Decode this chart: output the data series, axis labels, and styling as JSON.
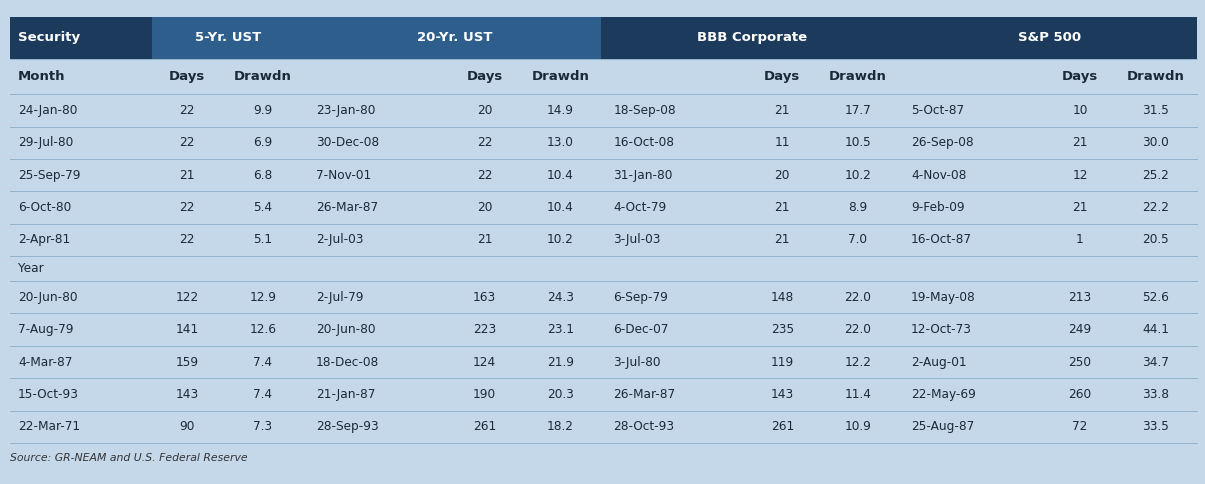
{
  "source_text": "Source: GR-NEAM and U.S. Federal Reserve",
  "col0_header1": "Security",
  "col0_header2": "Month",
  "group_headers": [
    "5-Yr. UST",
    "20-Yr. UST",
    "BBB Corporate",
    "S&P 500"
  ],
  "subheaders": [
    "Days",
    "Drawdn"
  ],
  "month_rows": [
    [
      "24-Jan-80",
      "22",
      "9.9",
      "23-Jan-80",
      "20",
      "14.9",
      "18-Sep-08",
      "21",
      "17.7",
      "5-Oct-87",
      "10",
      "31.5"
    ],
    [
      "29-Jul-80",
      "22",
      "6.9",
      "30-Dec-08",
      "22",
      "13.0",
      "16-Oct-08",
      "11",
      "10.5",
      "26-Sep-08",
      "21",
      "30.0"
    ],
    [
      "25-Sep-79",
      "21",
      "6.8",
      "7-Nov-01",
      "22",
      "10.4",
      "31-Jan-80",
      "20",
      "10.2",
      "4-Nov-08",
      "12",
      "25.2"
    ],
    [
      "6-Oct-80",
      "22",
      "5.4",
      "26-Mar-87",
      "20",
      "10.4",
      "4-Oct-79",
      "21",
      "8.9",
      "9-Feb-09",
      "21",
      "22.2"
    ],
    [
      "2-Apr-81",
      "22",
      "5.1",
      "2-Jul-03",
      "21",
      "10.2",
      "3-Jul-03",
      "21",
      "7.0",
      "16-Oct-87",
      "1",
      "20.5"
    ]
  ],
  "year_label": "Year",
  "year_rows": [
    [
      "20-Jun-80",
      "122",
      "12.9",
      "2-Jul-79",
      "163",
      "24.3",
      "6-Sep-79",
      "148",
      "22.0",
      "19-May-08",
      "213",
      "52.6"
    ],
    [
      "7-Aug-79",
      "141",
      "12.6",
      "20-Jun-80",
      "223",
      "23.1",
      "6-Dec-07",
      "235",
      "22.0",
      "12-Oct-73",
      "249",
      "44.1"
    ],
    [
      "4-Mar-87",
      "159",
      "7.4",
      "18-Dec-08",
      "124",
      "21.9",
      "3-Jul-80",
      "119",
      "12.2",
      "2-Aug-01",
      "250",
      "34.7"
    ],
    [
      "15-Oct-93",
      "143",
      "7.4",
      "21-Jan-87",
      "190",
      "20.3",
      "26-Mar-87",
      "143",
      "11.4",
      "22-May-69",
      "260",
      "33.8"
    ],
    [
      "22-Mar-71",
      "90",
      "7.3",
      "28-Sep-93",
      "261",
      "18.2",
      "28-Oct-93",
      "261",
      "10.9",
      "25-Aug-87",
      "72",
      "33.5"
    ]
  ],
  "color_dark": "#1b3a5c",
  "color_medium": "#2e5f8c",
  "color_row": "#c5d8ea",
  "color_row_alt": "#b8cad8",
  "color_year": "#c5d8ea",
  "color_white": "#ffffff",
  "color_text": "#1a2a3a",
  "color_source": "#333333",
  "fs_header": 9.5,
  "fs_data": 8.7,
  "fs_source": 7.8
}
